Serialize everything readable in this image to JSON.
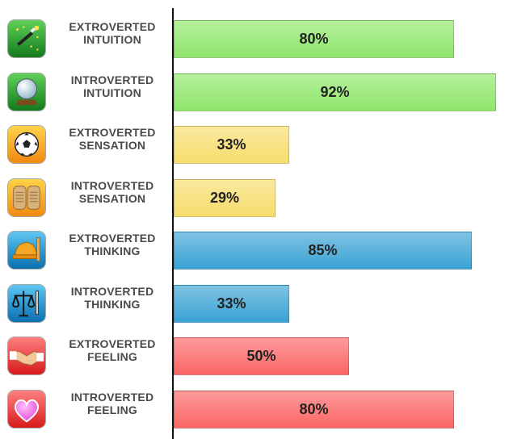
{
  "chart_data": {
    "type": "bar",
    "orientation": "horizontal",
    "xlim": [
      0,
      100
    ],
    "grid": false,
    "legend": "none",
    "categories": [
      {
        "line1": "EXTROVERTED",
        "line2": "INTUITION",
        "value": 80,
        "label": "80%",
        "color": "#8ee66a",
        "icon": "magic-wand-icon"
      },
      {
        "line1": "INTROVERTED",
        "line2": "INTUITION",
        "value": 92,
        "label": "92%",
        "color": "#8ee66a",
        "icon": "crystal-ball-icon"
      },
      {
        "line1": "EXTROVERTED",
        "line2": "SENSATION",
        "value": 33,
        "label": "33%",
        "color": "#f7dd6c",
        "icon": "soccer-ball-icon"
      },
      {
        "line1": "INTROVERTED",
        "line2": "SENSATION",
        "value": 29,
        "label": "29%",
        "color": "#f7dd6c",
        "icon": "book-icon"
      },
      {
        "line1": "EXTROVERTED",
        "line2": "THINKING",
        "value": 85,
        "label": "85%",
        "color": "#3aa3d4",
        "icon": "hard-hat-icon"
      },
      {
        "line1": "INTROVERTED",
        "line2": "THINKING",
        "value": 33,
        "label": "33%",
        "color": "#3aa3d4",
        "icon": "scales-of-justice-icon"
      },
      {
        "line1": "EXTROVERTED",
        "line2": "FEELING",
        "value": 50,
        "label": "50%",
        "color": "#fb6565",
        "icon": "handshake-icon"
      },
      {
        "line1": "INTROVERTED",
        "line2": "FEELING",
        "value": 80,
        "label": "80%",
        "color": "#fb6565",
        "icon": "heart-icon"
      }
    ]
  }
}
